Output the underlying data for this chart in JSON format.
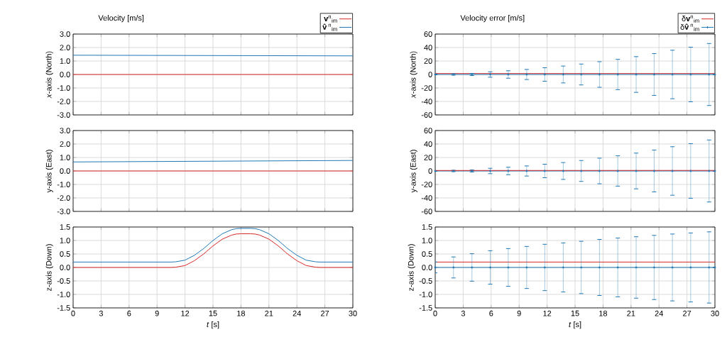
{
  "chart_data": [
    {
      "type": "line",
      "title": "Velocity [m/s]",
      "ylabel": "*x*-axis (North)",
      "xlim": [
        0,
        30
      ],
      "ylim": [
        -3,
        3
      ],
      "xticks": [
        0,
        3,
        6,
        9,
        12,
        15,
        18,
        21,
        24,
        27,
        30
      ],
      "yticks": [
        {
          "value": -3,
          "label": "-3.0"
        },
        {
          "value": -2,
          "label": "-2.0"
        },
        {
          "value": -1,
          "label": "-1.0"
        },
        {
          "value": 0,
          "label": "0.0"
        },
        {
          "value": 1,
          "label": "1.0"
        },
        {
          "value": 2,
          "label": "2.0"
        },
        {
          "value": 3,
          "label": "3.0"
        }
      ],
      "grid": true,
      "legend": "top right",
      "tick_labels": "y",
      "series": [
        {
          "name": "**v**$^{n}$$_{im}$",
          "color": "#d62728",
          "x": [
            0,
            30
          ],
          "values": [
            0,
            0
          ]
        },
        {
          "name": "**v̂**$^{n}$$_{im}$",
          "color": "#1f77b4",
          "x": [
            0,
            30
          ],
          "values": [
            1.43,
            1.38
          ]
        }
      ]
    },
    {
      "type": "line",
      "title": "Velocity error [m/s]",
      "ylabel": "*x*-axis (North)",
      "xlim": [
        0,
        30
      ],
      "ylim": [
        -60,
        60
      ],
      "xticks": [
        0,
        3,
        6,
        9,
        12,
        15,
        18,
        21,
        24,
        27,
        30
      ],
      "yticks": [
        -60,
        -40,
        -20,
        0,
        20,
        40,
        60
      ],
      "grid": true,
      "legend": "top right",
      "tick_labels": "y",
      "series": [
        {
          "name": "δ**v**$^{n}$$_{im}$",
          "color": "#d62728",
          "x": [
            0,
            30
          ],
          "values": [
            1.4,
            1.4
          ]
        },
        {
          "name": "δ**v̂**$^{n}$$_{im}$",
          "color": "#1f77b4",
          "marker": "cross",
          "x": [
            0,
            1.96,
            3.94,
            5.9,
            7.83,
            9.81,
            11.75,
            13.73,
            15.66,
            17.62,
            19.58,
            21.55,
            23.48,
            25.44,
            27.4,
            29.37,
            30
          ],
          "values": [
            0,
            0,
            0,
            0,
            0,
            0,
            0,
            0,
            0,
            0,
            0,
            0,
            0,
            0,
            0,
            0,
            0
          ],
          "errors": [
            0.5,
            1,
            1.5,
            4,
            5.5,
            7.5,
            10,
            12.5,
            15.5,
            19,
            22.5,
            26.5,
            31,
            36,
            40.5,
            46,
            null
          ]
        }
      ]
    },
    {
      "type": "line",
      "ylabel": "y-axis (East)",
      "xlim": [
        0,
        30
      ],
      "ylim": [
        -3,
        3
      ],
      "xticks": [
        0,
        3,
        6,
        9,
        12,
        15,
        18,
        21,
        24,
        27,
        30
      ],
      "yticks": [
        {
          "value": -3,
          "label": "-3.0"
        },
        {
          "value": -2,
          "label": "-2.0"
        },
        {
          "value": -1,
          "label": "-1.0"
        },
        {
          "value": 0,
          "label": "0.0"
        },
        {
          "value": 1,
          "label": "1.0"
        },
        {
          "value": 2,
          "label": "2.0"
        },
        {
          "value": 3,
          "label": "3.0"
        }
      ],
      "grid": true,
      "tick_labels": "y",
      "series": [
        {
          "color": "#d62728",
          "x": [
            0,
            30
          ],
          "values": [
            0,
            0
          ]
        },
        {
          "color": "#1f77b4",
          "x": [
            0,
            30
          ],
          "values": [
            0.67,
            0.78
          ]
        }
      ]
    },
    {
      "type": "line",
      "ylabel": "y-axis (East)",
      "xlim": [
        0,
        30
      ],
      "ylim": [
        -60,
        60
      ],
      "xticks": [
        0,
        3,
        6,
        9,
        12,
        15,
        18,
        21,
        24,
        27,
        30
      ],
      "yticks": [
        -60,
        -40,
        -20,
        0,
        20,
        40,
        60
      ],
      "grid": true,
      "tick_labels": "y",
      "series": [
        {
          "color": "#1f77b4",
          "marker": "cross",
          "x": [
            0,
            1.96,
            3.94,
            5.9,
            7.83,
            9.81,
            11.75,
            13.73,
            15.66,
            17.62,
            19.58,
            21.55,
            23.48,
            25.44,
            27.4,
            29.37,
            30
          ],
          "values": [
            0,
            0,
            0,
            0,
            0,
            0,
            0,
            0,
            0,
            0,
            0,
            0,
            0,
            0,
            0,
            0,
            0
          ],
          "errors": [
            0.5,
            1,
            1.5,
            4,
            5.5,
            7.5,
            10,
            12.5,
            15.5,
            19,
            22.5,
            26.5,
            31,
            36,
            40.5,
            46,
            null
          ]
        },
        {
          "color": "#d62728",
          "x": [
            0,
            30
          ],
          "values": [
            0.7,
            0.8
          ]
        }
      ]
    },
    {
      "type": "line",
      "ylabel": "z-axis (Down)",
      "xlabel": "*t* [s]",
      "xlim": [
        0,
        30
      ],
      "ylim": [
        -1.5,
        1.5
      ],
      "xticks": [
        0,
        3,
        6,
        9,
        12,
        15,
        18,
        21,
        24,
        27,
        30
      ],
      "yticks": [
        -1.5,
        {
          "value": -1,
          "label": "-1.0"
        },
        -0.5,
        {
          "value": 0,
          "label": "0.0"
        },
        0.5,
        {
          "value": 1,
          "label": "1.0"
        },
        1.5
      ],
      "grid": true,
      "series": [
        {
          "color": "#d62728",
          "x": [
            0,
            10.5,
            11,
            12,
            13,
            14,
            15,
            16,
            17,
            17.5,
            18,
            19,
            19.5,
            20,
            21,
            22,
            23,
            24,
            25,
            26,
            26.5,
            30
          ],
          "values": [
            0,
            0,
            0.01,
            0.07,
            0.25,
            0.5,
            0.8,
            1.05,
            1.2,
            1.24,
            1.25,
            1.25,
            1.24,
            1.2,
            1.05,
            0.8,
            0.5,
            0.25,
            0.07,
            0.01,
            0,
            0
          ]
        },
        {
          "color": "#1f77b4",
          "x": [
            0,
            10.5,
            11,
            12,
            13,
            14,
            15,
            16,
            17,
            17.5,
            18,
            19,
            19.5,
            20,
            21,
            22,
            23,
            24,
            25,
            26,
            26.5,
            30
          ],
          "values": [
            0.2,
            0.2,
            0.21,
            0.27,
            0.45,
            0.7,
            1.0,
            1.25,
            1.4,
            1.44,
            1.45,
            1.45,
            1.44,
            1.4,
            1.25,
            1.0,
            0.7,
            0.45,
            0.27,
            0.21,
            0.2,
            0.2
          ]
        }
      ]
    },
    {
      "type": "line",
      "ylabel": "z-axis (Down)",
      "xlabel": "*t* [s]",
      "xlim": [
        0,
        30
      ],
      "ylim": [
        -1.5,
        1.5
      ],
      "xticks": [
        0,
        3,
        6,
        9,
        12,
        15,
        18,
        21,
        24,
        27,
        30
      ],
      "yticks": [
        -1.5,
        {
          "value": -1,
          "label": "-1.0"
        },
        -0.5,
        {
          "value": 0,
          "label": "0.0"
        },
        0.5,
        {
          "value": 1,
          "label": "1.0"
        },
        1.5
      ],
      "grid": true,
      "series": [
        {
          "color": "#d62728",
          "x": [
            0,
            30
          ],
          "values": [
            0.2,
            0.2
          ]
        },
        {
          "color": "#1f77b4",
          "marker": "cross",
          "x": [
            0,
            1.96,
            3.94,
            5.9,
            7.83,
            9.81,
            11.75,
            13.73,
            15.66,
            17.62,
            19.58,
            21.55,
            23.48,
            25.44,
            27.4,
            29.37,
            30
          ],
          "values": [
            0,
            0,
            0,
            0,
            0,
            0,
            0,
            0,
            0,
            0,
            0,
            0,
            0,
            0,
            0,
            0,
            0
          ],
          "errors": [
            0.2,
            0.39,
            0.51,
            0.62,
            0.7,
            0.78,
            0.86,
            0.91,
            0.97,
            1.04,
            1.09,
            1.14,
            1.19,
            1.24,
            1.28,
            1.32,
            null
          ]
        }
      ]
    }
  ]
}
